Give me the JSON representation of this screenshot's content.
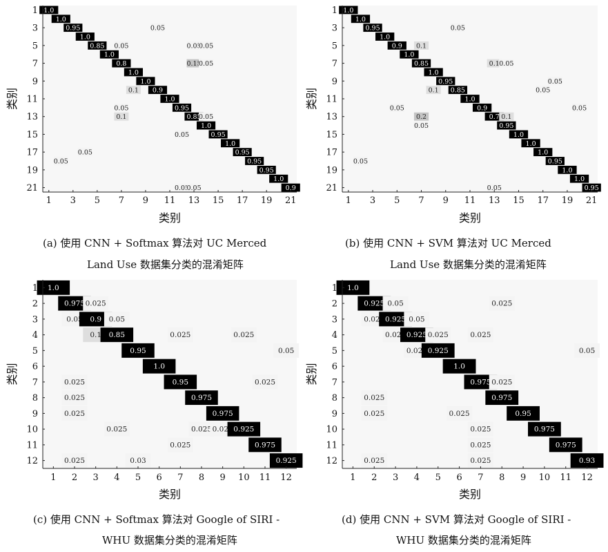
{
  "chart_data": [
    {
      "id": "a",
      "type": "heatmap",
      "xlabel": "类别",
      "ylabel": "类别",
      "n": 21,
      "tick_labels": [
        "1",
        "3",
        "5",
        "7",
        "9",
        "11",
        "13",
        "15",
        "17",
        "19",
        "21"
      ],
      "caption_line1": "(a) 使用 CNN + Softmax 算法对 UC Merced",
      "caption_line2": "Land Use 数据集分类的混淆矩阵",
      "cells": [
        [
          1,
          1,
          "1.0"
        ],
        [
          2,
          2,
          "1.0"
        ],
        [
          3,
          3,
          "0.95"
        ],
        [
          3,
          10,
          "0.05"
        ],
        [
          4,
          4,
          "1.0"
        ],
        [
          5,
          5,
          "0.85"
        ],
        [
          5,
          7,
          "0.05"
        ],
        [
          5,
          13,
          "0.05"
        ],
        [
          5,
          14,
          "0.05"
        ],
        [
          6,
          6,
          "1.0"
        ],
        [
          7,
          7,
          "0.8"
        ],
        [
          7,
          13,
          "0.15"
        ],
        [
          7,
          14,
          "0.05"
        ],
        [
          8,
          8,
          "1.0"
        ],
        [
          9,
          9,
          "1.0"
        ],
        [
          10,
          8,
          "0.1"
        ],
        [
          10,
          10,
          "0.9"
        ],
        [
          11,
          11,
          "1.0"
        ],
        [
          12,
          7,
          "0.05"
        ],
        [
          12,
          12,
          "0.95"
        ],
        [
          13,
          7,
          "0.1"
        ],
        [
          13,
          13,
          "0.85"
        ],
        [
          13,
          14,
          "0.05"
        ],
        [
          14,
          14,
          "1.0"
        ],
        [
          15,
          12,
          "0.05"
        ],
        [
          15,
          15,
          "0.95"
        ],
        [
          16,
          16,
          "1.0"
        ],
        [
          17,
          4,
          "0.05"
        ],
        [
          17,
          17,
          "0.95"
        ],
        [
          18,
          2,
          "0.05"
        ],
        [
          18,
          18,
          "0.95"
        ],
        [
          19,
          19,
          "0.95"
        ],
        [
          20,
          20,
          "1.0"
        ],
        [
          21,
          12,
          "0.05"
        ],
        [
          21,
          13,
          "0.05"
        ],
        [
          21,
          21,
          "0.9"
        ]
      ]
    },
    {
      "id": "b",
      "type": "heatmap",
      "xlabel": "类别",
      "ylabel": "类别",
      "n": 21,
      "tick_labels": [
        "1",
        "3",
        "5",
        "7",
        "9",
        "11",
        "13",
        "15",
        "17",
        "19",
        "21"
      ],
      "caption_line1": "(b) 使用 CNN + SVM 算法对 UC Merced",
      "caption_line2": "Land Use 数据集分类的混淆矩阵",
      "cells": [
        [
          1,
          1,
          "1.0"
        ],
        [
          2,
          2,
          "1.0"
        ],
        [
          3,
          3,
          "0.95"
        ],
        [
          3,
          10,
          "0.05"
        ],
        [
          4,
          4,
          "1.0"
        ],
        [
          5,
          5,
          "0.9"
        ],
        [
          5,
          7,
          "0.1"
        ],
        [
          6,
          6,
          "1.0"
        ],
        [
          7,
          7,
          "0.85"
        ],
        [
          7,
          13,
          "0.1"
        ],
        [
          7,
          14,
          "0.05"
        ],
        [
          8,
          8,
          "1.0"
        ],
        [
          9,
          9,
          "0.95"
        ],
        [
          9,
          18,
          "0.05"
        ],
        [
          10,
          8,
          "0.1"
        ],
        [
          10,
          10,
          "0.85"
        ],
        [
          10,
          17,
          "0.05"
        ],
        [
          11,
          11,
          "1.0"
        ],
        [
          12,
          5,
          "0.05"
        ],
        [
          12,
          12,
          "0.9"
        ],
        [
          12,
          20,
          "0.05"
        ],
        [
          13,
          7,
          "0.2"
        ],
        [
          13,
          13,
          "0.7"
        ],
        [
          13,
          14,
          "0.1"
        ],
        [
          14,
          7,
          "0.05"
        ],
        [
          14,
          14,
          "0.95"
        ],
        [
          15,
          15,
          "1.0"
        ],
        [
          16,
          16,
          "1.0"
        ],
        [
          17,
          17,
          "1.0"
        ],
        [
          18,
          2,
          "0.05"
        ],
        [
          18,
          18,
          "0.95"
        ],
        [
          19,
          19,
          "1.0"
        ],
        [
          20,
          20,
          "1.0"
        ],
        [
          21,
          13,
          "0.05"
        ],
        [
          21,
          21,
          "0.95"
        ]
      ]
    },
    {
      "id": "c",
      "type": "heatmap",
      "xlabel": "类别",
      "ylabel": "类别",
      "n": 12,
      "tick_labels": [
        "1",
        "2",
        "3",
        "4",
        "5",
        "6",
        "7",
        "8",
        "9",
        "10",
        "11",
        "12"
      ],
      "caption_line1": "(c) 使用 CNN + Softmax 算法对 Google of SIRI -",
      "caption_line2": "WHU 数据集分类的混淆矩阵",
      "cells": [
        [
          1,
          1,
          "1.0"
        ],
        [
          2,
          2,
          "0.975"
        ],
        [
          2,
          3,
          "0.025"
        ],
        [
          3,
          2,
          "0.05"
        ],
        [
          3,
          3,
          "0.9"
        ],
        [
          3,
          4,
          "0.05"
        ],
        [
          4,
          3,
          "0.1"
        ],
        [
          4,
          4,
          "0.85"
        ],
        [
          4,
          7,
          "0.025"
        ],
        [
          4,
          10,
          "0.025"
        ],
        [
          5,
          5,
          "0.95"
        ],
        [
          5,
          12,
          "0.05"
        ],
        [
          6,
          6,
          "1.0"
        ],
        [
          7,
          2,
          "0.025"
        ],
        [
          7,
          7,
          "0.95"
        ],
        [
          7,
          11,
          "0.025"
        ],
        [
          8,
          2,
          "0.025"
        ],
        [
          8,
          8,
          "0.975"
        ],
        [
          9,
          2,
          "0.025"
        ],
        [
          9,
          9,
          "0.975"
        ],
        [
          10,
          4,
          "0.025"
        ],
        [
          10,
          8,
          "0.025"
        ],
        [
          10,
          9,
          "0.023"
        ],
        [
          10,
          10,
          "0.925"
        ],
        [
          11,
          7,
          "0.025"
        ],
        [
          11,
          11,
          "0.975"
        ],
        [
          12,
          2,
          "0.025"
        ],
        [
          12,
          5,
          "0.03"
        ],
        [
          12,
          12,
          "0.925"
        ]
      ]
    },
    {
      "id": "d",
      "type": "heatmap",
      "xlabel": "类别",
      "ylabel": "类别",
      "n": 12,
      "tick_labels": [
        "1",
        "2",
        "3",
        "4",
        "5",
        "6",
        "7",
        "8",
        "9",
        "10",
        "11",
        "12"
      ],
      "caption_line1": "(d) 使用 CNN + SVM 算法对 Google of SIRI -",
      "caption_line2": "WHU 数据集分类的混淆矩阵",
      "cells": [
        [
          1,
          1,
          "1.0"
        ],
        [
          2,
          2,
          "0.925"
        ],
        [
          2,
          3,
          "0.05"
        ],
        [
          2,
          8,
          "0.025"
        ],
        [
          3,
          2,
          "0.025"
        ],
        [
          3,
          3,
          "0.925"
        ],
        [
          3,
          4,
          "0.05"
        ],
        [
          4,
          3,
          "0.025"
        ],
        [
          4,
          4,
          "0.925"
        ],
        [
          4,
          5,
          "0.025"
        ],
        [
          4,
          7,
          "0.025"
        ],
        [
          5,
          4,
          "0.025"
        ],
        [
          5,
          5,
          "0.925"
        ],
        [
          5,
          12,
          "0.05"
        ],
        [
          6,
          6,
          "1.0"
        ],
        [
          7,
          7,
          "0.975"
        ],
        [
          7,
          8,
          "0.025"
        ],
        [
          8,
          2,
          "0.025"
        ],
        [
          8,
          8,
          "0.975"
        ],
        [
          9,
          2,
          "0.025"
        ],
        [
          9,
          6,
          "0.025"
        ],
        [
          9,
          9,
          "0.95"
        ],
        [
          10,
          7,
          "0.025"
        ],
        [
          10,
          10,
          "0.975"
        ],
        [
          11,
          7,
          "0.025"
        ],
        [
          11,
          11,
          "0.975"
        ],
        [
          12,
          2,
          "0.025"
        ],
        [
          12,
          7,
          "0.025"
        ],
        [
          12,
          12,
          "0.93"
        ]
      ]
    }
  ]
}
